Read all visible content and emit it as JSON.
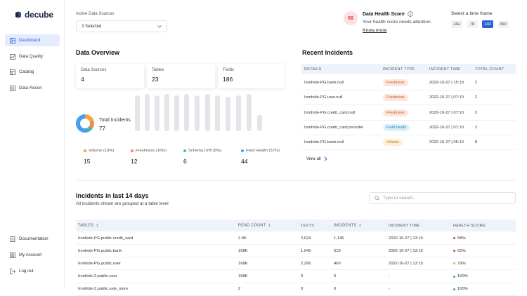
{
  "app": {
    "logo_text": "decube"
  },
  "sidebar": {
    "items": [
      {
        "label": "Dashboard",
        "icon": "dashboard-icon"
      },
      {
        "label": "Data Quality",
        "icon": "data-quality-icon"
      },
      {
        "label": "Catalog",
        "icon": "catalog-icon"
      },
      {
        "label": "Data Recon",
        "icon": "data-recon-icon"
      }
    ],
    "bottom_items": [
      {
        "label": "Documentation",
        "icon": "documentation-icon"
      },
      {
        "label": "My Account",
        "icon": "account-icon"
      },
      {
        "label": "Log out",
        "icon": "logout-icon"
      }
    ]
  },
  "filter": {
    "label": "Active Data Sources",
    "value": "3 Selected"
  },
  "health": {
    "score": "66",
    "title": "Data Health Score",
    "message": "Your health score needs attention.",
    "link": "Know more",
    "score_color": "#d6403f"
  },
  "timeframe": {
    "label": "Select a time frame",
    "options": [
      "24H",
      "7D",
      "14D",
      "30D"
    ],
    "selected": "14D"
  },
  "overview": {
    "title": "Data Overview",
    "cards": [
      {
        "label": "Data Sources",
        "value": "4"
      },
      {
        "label": "Tables",
        "value": "23"
      },
      {
        "label": "Fields",
        "value": "186"
      }
    ],
    "total_label": "Total Incidents",
    "total_value": "77",
    "breakdown": [
      {
        "label": "Volume (19%)",
        "value": "15",
        "color": "#f2a33a",
        "share": 19
      },
      {
        "label": "Freshness (16%)",
        "value": "12",
        "color": "#ef8b5b",
        "share": 16
      },
      {
        "label": "Schema Drift (8%)",
        "value": "6",
        "color": "#3cc0a0",
        "share": 8
      },
      {
        "label": "Field Health (57%)",
        "value": "44",
        "color": "#4a9ee8",
        "share": 57
      }
    ]
  },
  "recent": {
    "title": "Recent Incidents",
    "headers": [
      "DETAILS",
      "INCIDENT TYPE",
      "INCIDENT TIME",
      "TOTAL COUNT"
    ],
    "rows": [
      {
        "details": "Ironhide-PG.bank.null",
        "type": "Freshness",
        "time": "2022-10-27 | 15:10",
        "count": "2"
      },
      {
        "details": "Ironhide-PG.user.null",
        "type": "Freshness",
        "time": "2022-10-27 | 07:10",
        "count": "2"
      },
      {
        "details": "Ironhide-PG.credit_card.null",
        "type": "Freshness",
        "time": "2022-10-27 | 07:10",
        "count": "2"
      },
      {
        "details": "Ironhide-PG.credit_card.provider",
        "type": "Field health",
        "time": "2022-10-27 | 07:10",
        "count": "2"
      },
      {
        "details": "Ironhide-PG.bank.null",
        "type": "Volume",
        "time": "2022-10-27 | 05:10",
        "count": "8"
      }
    ],
    "view_all": "View all"
  },
  "incidents14": {
    "title": "Incidents in last 14 days",
    "subtitle": "All incidents shown are grouped at a table level",
    "search_placeholder": "Type to search...",
    "headers": [
      "TABLES",
      "READ COUNT",
      "TESTS",
      "INCIDENTS",
      "INCIDENT TIME",
      "HEALTH SCORE"
    ],
    "rows": [
      {
        "table": "Ironhide-PG.public.credit_card",
        "read": "2.9K",
        "tests": "2,624",
        "incidents": "1,146",
        "time": "2022-10-27 | 13:10",
        "health": "58%",
        "health_color": "#d6403f"
      },
      {
        "table": "Ironhide-PG.public.bank",
        "read": "168K",
        "tests": "1,640",
        "incidents": "619",
        "time": "2022-10-27 | 13:10",
        "health": "62%",
        "health_color": "#d6403f"
      },
      {
        "table": "Ironhide-PG.public.user",
        "read": "168K",
        "tests": "2,296",
        "incidents": "460",
        "time": "2022-10-27 | 13:10",
        "health": "79%",
        "health_color": "#f2a33a"
      },
      {
        "table": "Ironhide-2.public.user",
        "read": "168K",
        "tests": "0",
        "incidents": "0",
        "time": "-",
        "health": "100%",
        "health_color": "#2bb673"
      },
      {
        "table": "Ironhide-2.public.sale_store",
        "read": "2",
        "tests": "0",
        "incidents": "0",
        "time": "-",
        "health": "100%",
        "health_color": "#2bb673"
      }
    ]
  }
}
